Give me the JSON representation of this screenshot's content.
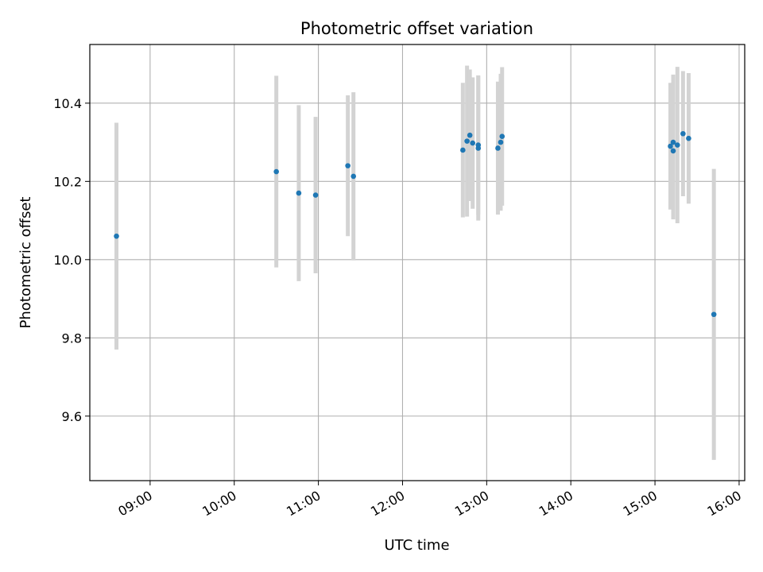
{
  "chart_data": {
    "type": "scatter",
    "title": "Photometric offset variation",
    "xlabel": "UTC time",
    "ylabel": "Photometric offset",
    "x_ticks": [
      "09:00",
      "10:00",
      "11:00",
      "12:00",
      "13:00",
      "14:00",
      "15:00",
      "16:00"
    ],
    "y_ticks": [
      "9.6",
      "9.8",
      "10.0",
      "10.2",
      "10.4"
    ],
    "xlim": [
      "08:17",
      "16:04"
    ],
    "ylim": [
      9.435,
      10.55
    ],
    "grid": true,
    "series": [
      {
        "marker_color": "#1f77b4",
        "errorbar_color": "#d3d3d3",
        "points": [
          {
            "time": "08:36",
            "y": 10.06,
            "err": 0.29
          },
          {
            "time": "10:30",
            "y": 10.225,
            "err": 0.245
          },
          {
            "time": "10:46",
            "y": 10.17,
            "err": 0.225
          },
          {
            "time": "10:58",
            "y": 10.165,
            "err": 0.2
          },
          {
            "time": "11:21",
            "y": 10.24,
            "err": 0.18
          },
          {
            "time": "11:25",
            "y": 10.213,
            "err": 0.215
          },
          {
            "time": "12:43",
            "y": 10.28,
            "err": 0.172
          },
          {
            "time": "12:46",
            "y": 10.303,
            "err": 0.193
          },
          {
            "time": "12:48",
            "y": 10.318,
            "err": 0.168
          },
          {
            "time": "12:50",
            "y": 10.298,
            "err": 0.168
          },
          {
            "time": "12:54",
            "y": 10.293,
            "err": 0.178
          },
          {
            "time": "12:54",
            "y": 10.285,
            "err": 0.185
          },
          {
            "time": "13:08",
            "y": 10.285,
            "err": 0.17
          },
          {
            "time": "13:10",
            "y": 10.3,
            "err": 0.175
          },
          {
            "time": "13:11",
            "y": 10.315,
            "err": 0.177
          },
          {
            "time": "15:11",
            "y": 10.29,
            "err": 0.162
          },
          {
            "time": "15:13",
            "y": 10.3,
            "err": 0.173
          },
          {
            "time": "15:13",
            "y": 10.278,
            "err": 0.175
          },
          {
            "time": "15:16",
            "y": 10.293,
            "err": 0.2
          },
          {
            "time": "15:20",
            "y": 10.322,
            "err": 0.16
          },
          {
            "time": "15:24",
            "y": 10.31,
            "err": 0.167
          },
          {
            "time": "15:42",
            "y": 9.86,
            "err": 0.372
          }
        ]
      }
    ]
  }
}
